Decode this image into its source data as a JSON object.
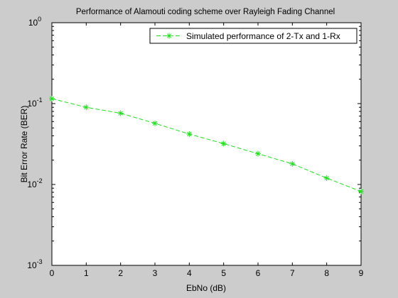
{
  "chart_data": {
    "type": "line",
    "title": "Performance of Alamouti coding scheme over Rayleigh Fading Channel",
    "xlabel": "EbNo (dB)",
    "ylabel": "Bit Error Rate (BER)",
    "xlim": [
      0,
      9
    ],
    "ylim": [
      0.001,
      1
    ],
    "yscale": "log",
    "grid": false,
    "legend_position": "top-right",
    "xticks": [
      "0",
      "1",
      "2",
      "3",
      "4",
      "5",
      "6",
      "7",
      "8",
      "9"
    ],
    "yticks": [
      {
        "base": "10",
        "exp": "0"
      },
      {
        "base": "10",
        "exp": "-1"
      },
      {
        "base": "10",
        "exp": "-2"
      },
      {
        "base": "10",
        "exp": "-3"
      }
    ],
    "x": [
      0,
      1,
      2,
      3,
      4,
      5,
      6,
      7,
      8,
      9
    ],
    "series": [
      {
        "name": "Simulated performance of 2-Tx and 1-Rx",
        "color": "#22dd22",
        "line_style": "dashed",
        "marker": "asterisk",
        "values": [
          0.115,
          0.09,
          0.076,
          0.057,
          0.042,
          0.032,
          0.024,
          0.018,
          0.012,
          0.0082
        ]
      }
    ]
  }
}
